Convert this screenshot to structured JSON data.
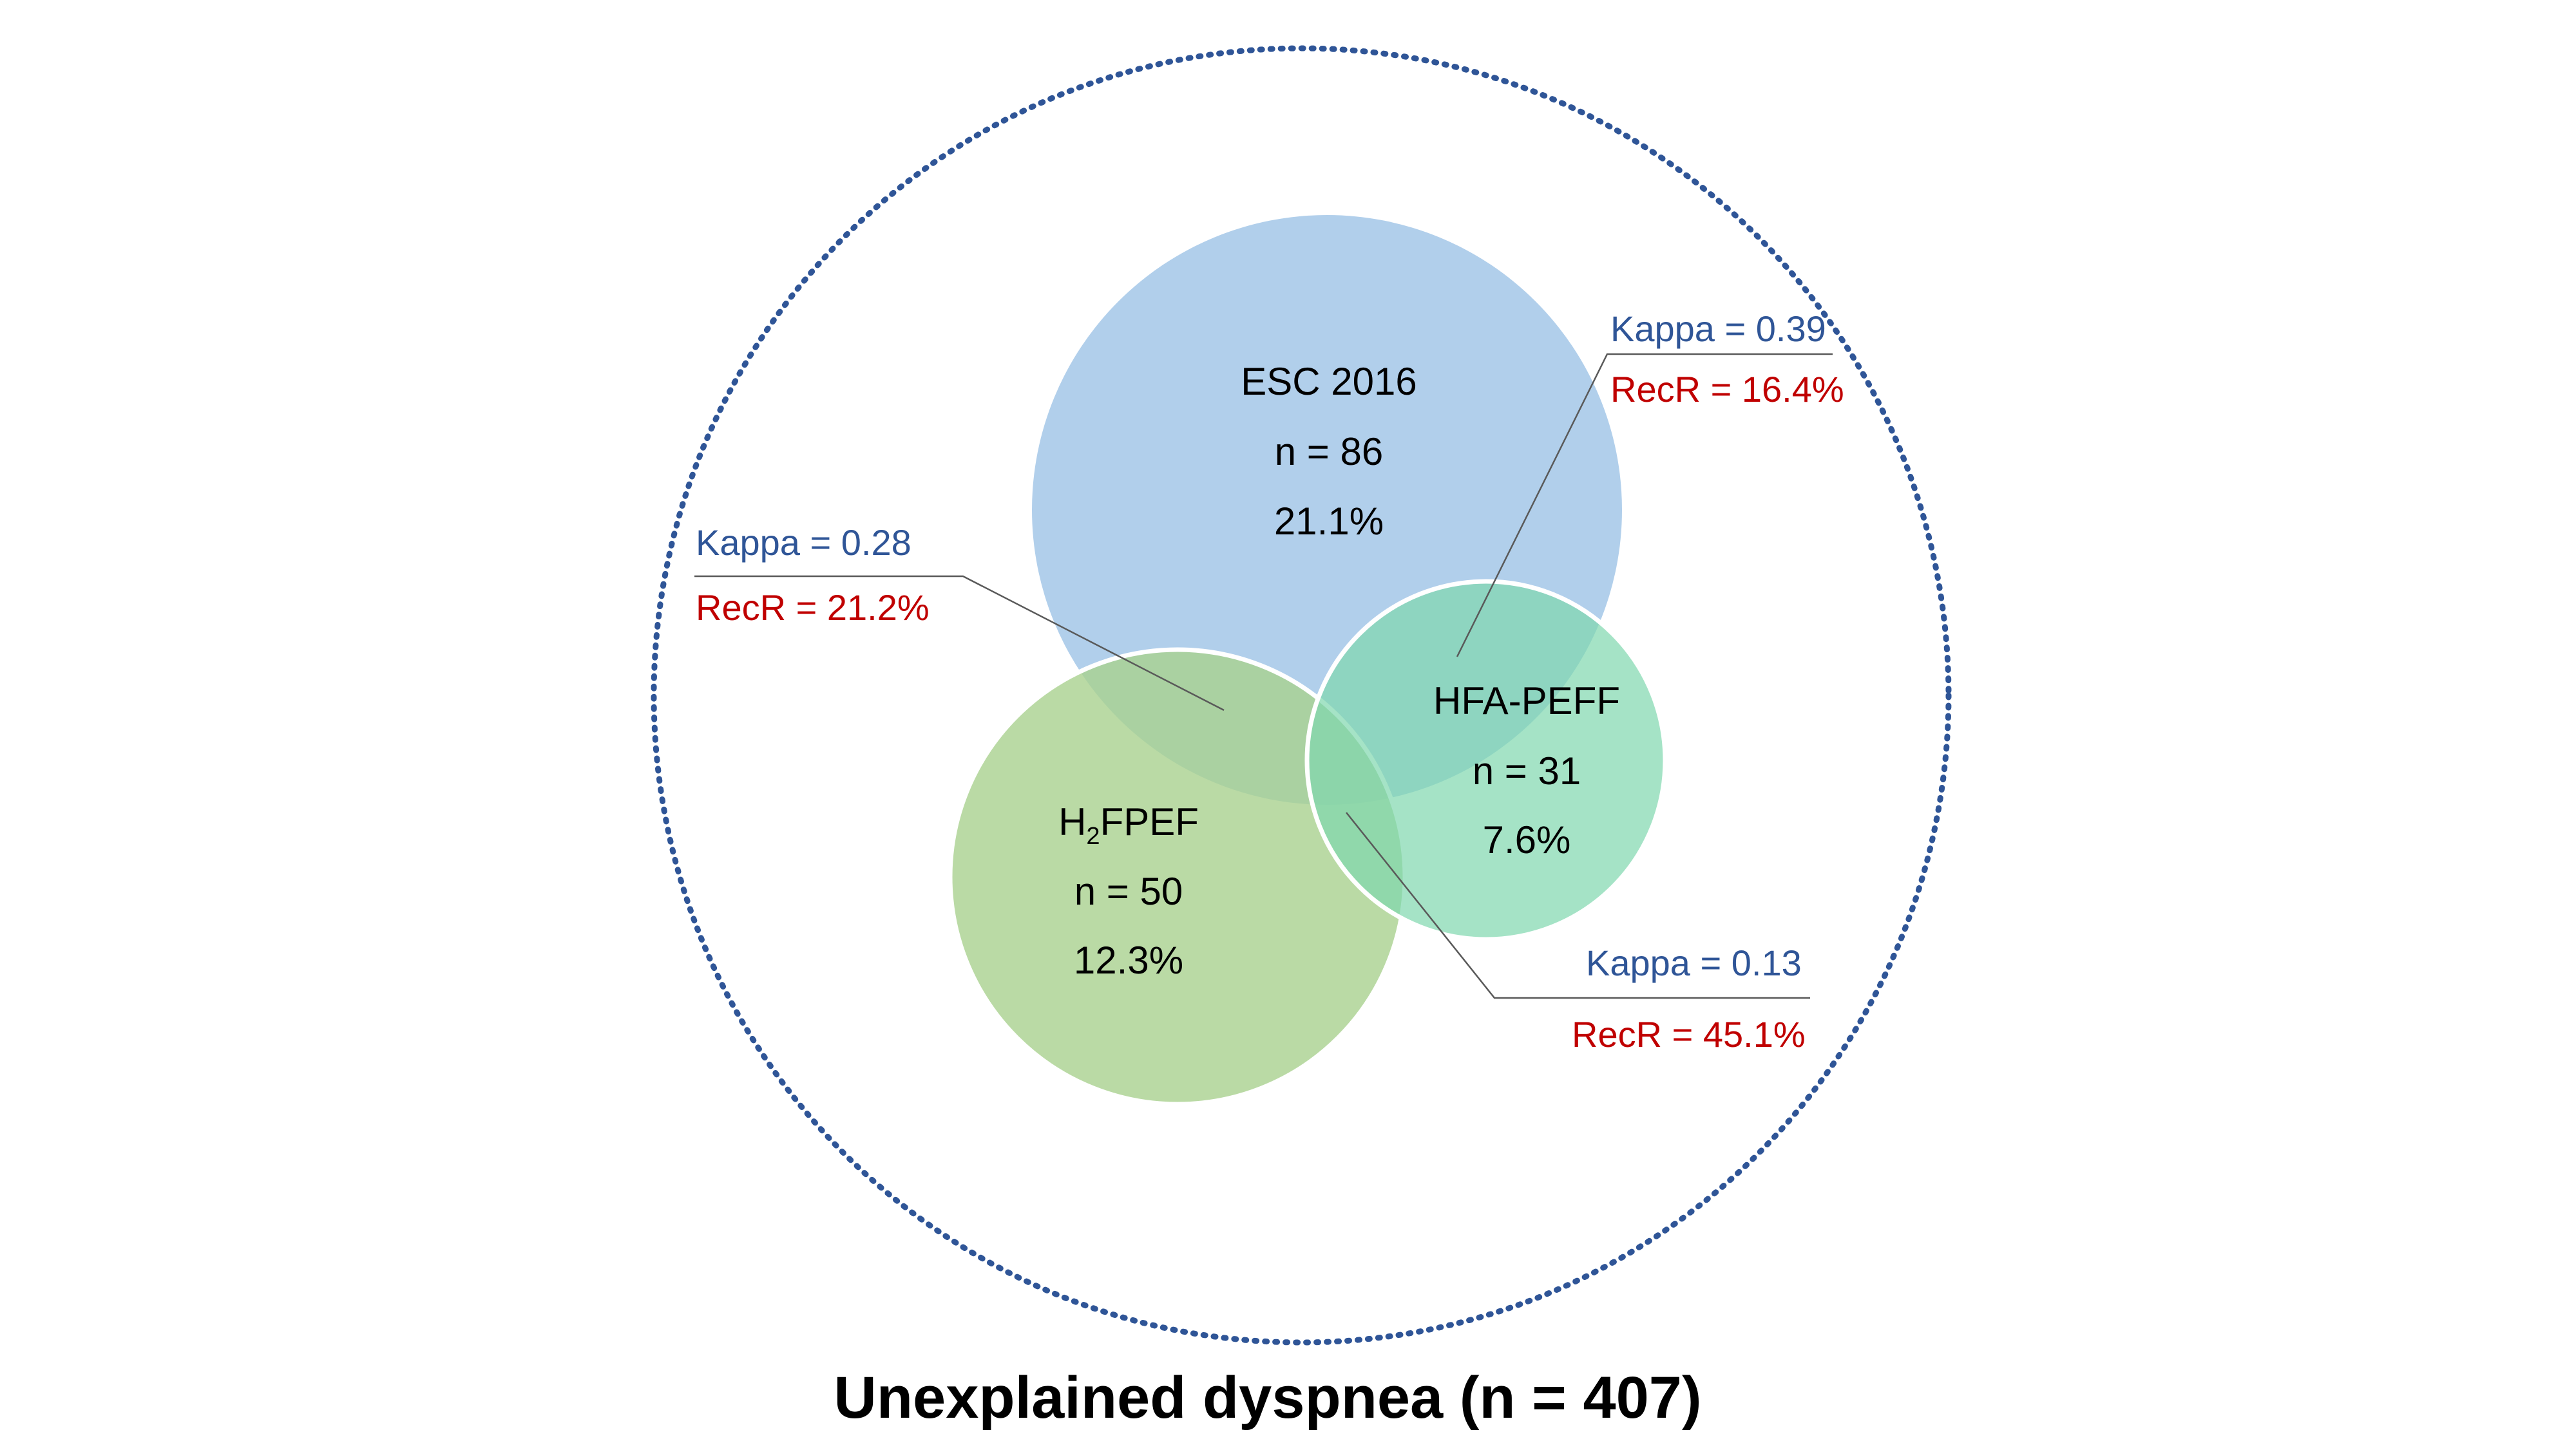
{
  "population": {
    "label": "Unexplained dyspnea (n = 407)"
  },
  "sets": {
    "esc": {
      "name": "ESC 2016",
      "n": "n = 86",
      "pct": "21.1%",
      "color": "#9DC3E6"
    },
    "hfa": {
      "name": "HFA-PEFF",
      "n": "n = 31",
      "pct": "7.6%",
      "color": "#8BDBB5"
    },
    "h2f": {
      "name_main": "H",
      "name_sub": "2",
      "name_rest": "FPEF",
      "n": "n = 50",
      "pct": "12.3%",
      "color": "#A9D18E"
    }
  },
  "overlaps": {
    "esc_h2fpef": {
      "kappa": "Kappa = 0.28",
      "recr": "RecR = 21.2%"
    },
    "esc_hfapeff": {
      "kappa": "Kappa = 0.39",
      "recr": "RecR = 16.4%"
    },
    "h2fpef_hfapeff": {
      "kappa": "Kappa = 0.13",
      "recr": "RecR = 45.1%"
    }
  },
  "colors": {
    "kappa": "#2F5597",
    "recr": "#C00000",
    "outline": "#2F5597"
  }
}
